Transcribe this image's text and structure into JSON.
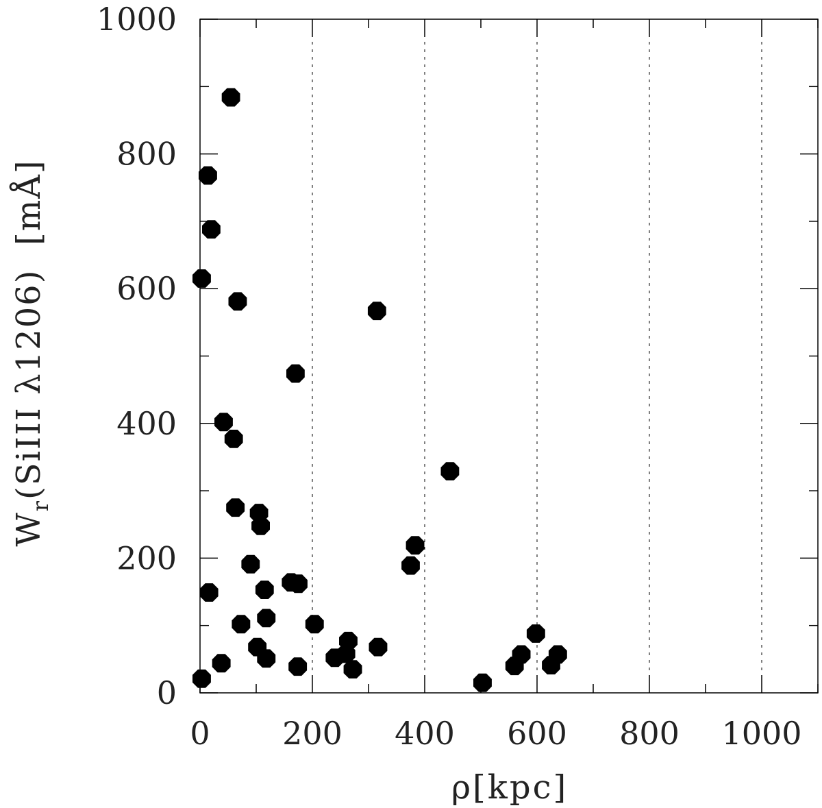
{
  "chart_data": {
    "type": "scatter",
    "title": "",
    "xlabel": "ρ[kpc]",
    "ylabel": "W_r(SiIII λ1206) [mÅ]",
    "ylabel_parts": {
      "base": "W",
      "sub": "r",
      "rest": "(SiIII λ1206)  [mÅ]"
    },
    "xlim": [
      0,
      1100
    ],
    "ylim": [
      0,
      1000
    ],
    "x_ticks": [
      "0",
      "200",
      "400",
      "600",
      "800",
      "1000"
    ],
    "y_ticks": [
      "0",
      "200",
      "400",
      "600",
      "800",
      "1000"
    ],
    "grid": "vertical dotted lines at x = 200, 400, 600, 800, 1000",
    "marker_color": "#000000",
    "points": [
      {
        "x": 3,
        "y": 615
      },
      {
        "x": 14,
        "y": 768
      },
      {
        "x": 20,
        "y": 688
      },
      {
        "x": 55,
        "y": 884
      },
      {
        "x": 67,
        "y": 581
      },
      {
        "x": 170,
        "y": 474
      },
      {
        "x": 315,
        "y": 567
      },
      {
        "x": 42,
        "y": 402
      },
      {
        "x": 60,
        "y": 377
      },
      {
        "x": 445,
        "y": 329
      },
      {
        "x": 63,
        "y": 275
      },
      {
        "x": 105,
        "y": 267
      },
      {
        "x": 108,
        "y": 248
      },
      {
        "x": 383,
        "y": 219
      },
      {
        "x": 375,
        "y": 189
      },
      {
        "x": 90,
        "y": 191
      },
      {
        "x": 162,
        "y": 164
      },
      {
        "x": 175,
        "y": 162
      },
      {
        "x": 16,
        "y": 149
      },
      {
        "x": 115,
        "y": 153
      },
      {
        "x": 118,
        "y": 111
      },
      {
        "x": 73,
        "y": 102
      },
      {
        "x": 204,
        "y": 102
      },
      {
        "x": 317,
        "y": 68
      },
      {
        "x": 102,
        "y": 68
      },
      {
        "x": 264,
        "y": 77
      },
      {
        "x": 260,
        "y": 58
      },
      {
        "x": 240,
        "y": 52
      },
      {
        "x": 118,
        "y": 51
      },
      {
        "x": 38,
        "y": 44
      },
      {
        "x": 174,
        "y": 39
      },
      {
        "x": 272,
        "y": 35
      },
      {
        "x": 3,
        "y": 21
      },
      {
        "x": 503,
        "y": 15
      },
      {
        "x": 598,
        "y": 88
      },
      {
        "x": 572,
        "y": 57
      },
      {
        "x": 637,
        "y": 57
      },
      {
        "x": 560,
        "y": 40
      },
      {
        "x": 625,
        "y": 41
      }
    ]
  }
}
